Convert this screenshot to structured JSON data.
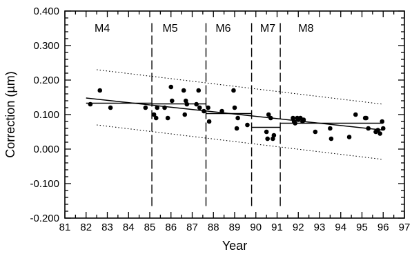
{
  "chart_data": {
    "type": "scatter",
    "title": "",
    "xlabel": "Year",
    "ylabel": "Correction (µm)",
    "ylabel_parts": {
      "prefix": "Correction (",
      "symbol": "µ",
      "suffix": "m)"
    },
    "xlim": [
      81,
      97
    ],
    "ylim": [
      -0.2,
      0.4
    ],
    "x_ticks": [
      "81",
      "82",
      "83",
      "84",
      "85",
      "86",
      "87",
      "88",
      "89",
      "90",
      "91",
      "92",
      "93",
      "94",
      "95",
      "96",
      "97"
    ],
    "y_ticks": [
      "-0.200",
      "-0.100",
      "0.000",
      "0.100",
      "0.200",
      "0.300",
      "0.400"
    ],
    "grid": false,
    "segments": [
      {
        "label": "M4",
        "label_x": 82.4
      },
      {
        "label": "M5",
        "label_x": 85.6
      },
      {
        "label": "M6",
        "label_x": 88.1
      },
      {
        "label": "M7",
        "label_x": 90.2
      },
      {
        "label": "M8",
        "label_x": 92.0
      }
    ],
    "dividers": [
      85.1,
      87.65,
      89.8,
      91.15
    ],
    "divider_range": [
      -0.165,
      0.37
    ],
    "points": [
      {
        "x": 82.2,
        "y": 0.13
      },
      {
        "x": 82.65,
        "y": 0.17
      },
      {
        "x": 83.15,
        "y": 0.12
      },
      {
        "x": 84.8,
        "y": 0.12
      },
      {
        "x": 85.2,
        "y": 0.1
      },
      {
        "x": 85.3,
        "y": 0.09
      },
      {
        "x": 85.35,
        "y": 0.12
      },
      {
        "x": 85.7,
        "y": 0.12
      },
      {
        "x": 85.85,
        "y": 0.09
      },
      {
        "x": 86.0,
        "y": 0.18
      },
      {
        "x": 86.05,
        "y": 0.14
      },
      {
        "x": 86.6,
        "y": 0.17
      },
      {
        "x": 86.65,
        "y": 0.1
      },
      {
        "x": 86.7,
        "y": 0.14
      },
      {
        "x": 86.75,
        "y": 0.13
      },
      {
        "x": 87.2,
        "y": 0.13
      },
      {
        "x": 87.3,
        "y": 0.17
      },
      {
        "x": 87.35,
        "y": 0.12
      },
      {
        "x": 87.55,
        "y": 0.11
      },
      {
        "x": 87.75,
        "y": 0.12
      },
      {
        "x": 87.8,
        "y": 0.08
      },
      {
        "x": 88.4,
        "y": 0.11
      },
      {
        "x": 88.95,
        "y": 0.17
      },
      {
        "x": 89.0,
        "y": 0.12
      },
      {
        "x": 89.1,
        "y": 0.06
      },
      {
        "x": 89.15,
        "y": 0.09
      },
      {
        "x": 89.6,
        "y": 0.07
      },
      {
        "x": 90.5,
        "y": 0.05
      },
      {
        "x": 90.55,
        "y": 0.03
      },
      {
        "x": 90.6,
        "y": 0.1
      },
      {
        "x": 90.7,
        "y": 0.09
      },
      {
        "x": 90.8,
        "y": 0.03
      },
      {
        "x": 90.85,
        "y": 0.04
      },
      {
        "x": 91.75,
        "y": 0.09
      },
      {
        "x": 91.8,
        "y": 0.08
      },
      {
        "x": 91.85,
        "y": 0.075
      },
      {
        "x": 91.95,
        "y": 0.09
      },
      {
        "x": 92.0,
        "y": 0.085
      },
      {
        "x": 92.1,
        "y": 0.09
      },
      {
        "x": 92.2,
        "y": 0.08
      },
      {
        "x": 92.25,
        "y": 0.085
      },
      {
        "x": 92.8,
        "y": 0.05
      },
      {
        "x": 93.5,
        "y": 0.06
      },
      {
        "x": 93.55,
        "y": 0.03
      },
      {
        "x": 94.4,
        "y": 0.035
      },
      {
        "x": 94.7,
        "y": 0.1
      },
      {
        "x": 95.15,
        "y": 0.09
      },
      {
        "x": 95.2,
        "y": 0.09
      },
      {
        "x": 95.3,
        "y": 0.06
      },
      {
        "x": 95.65,
        "y": 0.05
      },
      {
        "x": 95.75,
        "y": 0.055
      },
      {
        "x": 95.85,
        "y": 0.045
      },
      {
        "x": 95.95,
        "y": 0.08
      },
      {
        "x": 96.0,
        "y": 0.06
      }
    ],
    "trend_line": {
      "x": [
        82.0,
        96.0
      ],
      "y": [
        0.148,
        0.055
      ]
    },
    "band_upper": {
      "x": [
        82.5,
        96.0
      ],
      "y": [
        0.23,
        0.13
      ]
    },
    "band_lower": {
      "x": [
        82.5,
        96.0
      ],
      "y": [
        0.07,
        -0.03
      ]
    },
    "segment_means": [
      {
        "x": [
          82.0,
          85.1
        ],
        "y": [
          0.133,
          0.133
        ]
      },
      {
        "x": [
          85.1,
          87.65
        ],
        "y": [
          0.131,
          0.131
        ]
      },
      {
        "x": [
          87.65,
          89.8
        ],
        "y": [
          0.103,
          0.103
        ]
      },
      {
        "x": [
          89.8,
          91.15
        ],
        "y": [
          0.063,
          0.063
        ]
      },
      {
        "x": [
          91.15,
          96.0
        ],
        "y": [
          0.075,
          0.075
        ]
      }
    ]
  }
}
